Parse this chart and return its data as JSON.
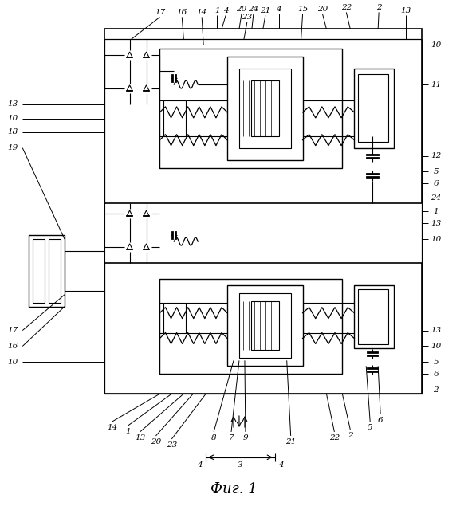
{
  "title": "Фиг. 1",
  "title_fontsize": 13,
  "bg_color": "#ffffff",
  "line_color": "#000000",
  "fig_width": 5.87,
  "fig_height": 6.4,
  "dpi": 100
}
